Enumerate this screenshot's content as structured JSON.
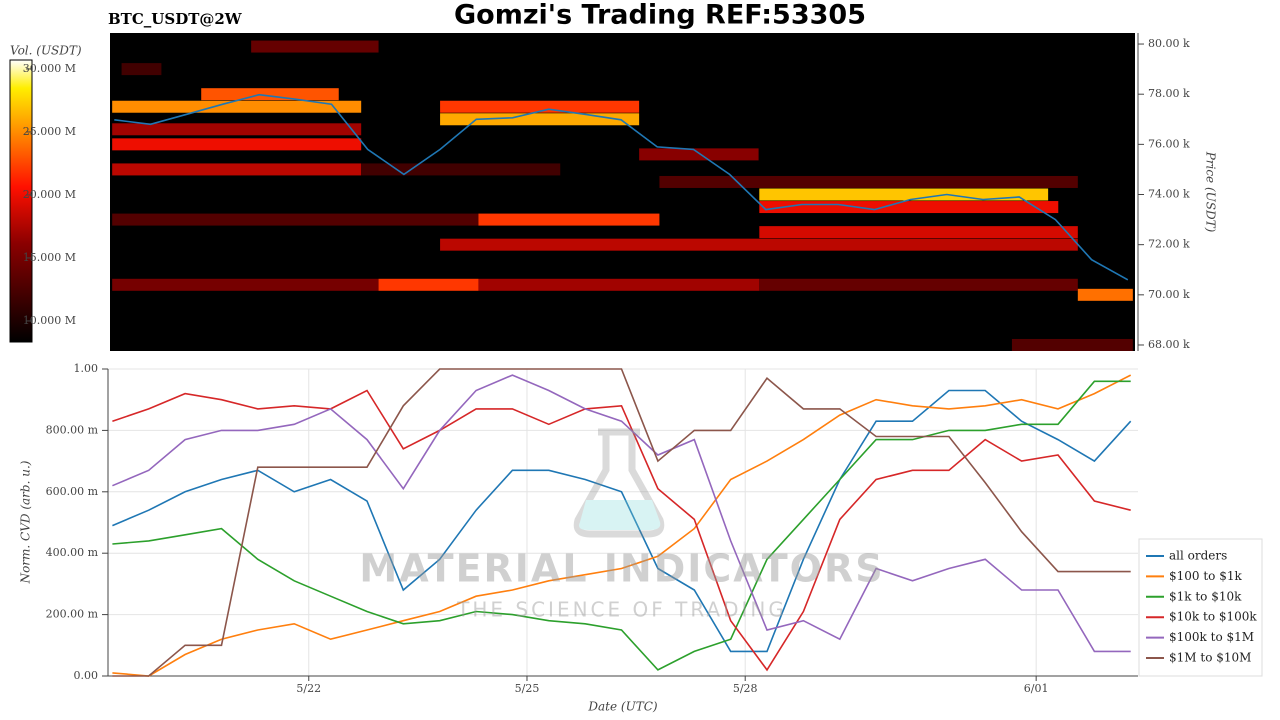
{
  "chart_data": [
    {
      "type": "heatmap",
      "title": "Gomzi's Trading REF:53305",
      "subtitle": "BTC_USDT@2W",
      "ylabel": "Price (USDT)",
      "xlim": [
        19.24,
        33.4
      ],
      "ylim": [
        67760,
        80440
      ],
      "yticks": [
        {
          "value": 68000,
          "label": "68.00 k"
        },
        {
          "value": 70000,
          "label": "70.00 k"
        },
        {
          "value": 72000,
          "label": "72.00 k"
        },
        {
          "value": 74000,
          "label": "74.00 k"
        },
        {
          "value": 76000,
          "label": "76.00 k"
        },
        {
          "value": 78000,
          "label": "78.00 k"
        },
        {
          "value": 80000,
          "label": "80.00 k"
        }
      ],
      "colorbar": {
        "label": "Vol. (USDT)",
        "lim": [
          8330000,
          30710000
        ],
        "ticks": [
          {
            "value": 10000000,
            "label": "10.000 M"
          },
          {
            "value": 15000000,
            "label": "15.000 M"
          },
          {
            "value": 20000000,
            "label": "20.000 M"
          },
          {
            "value": 25000000,
            "label": "25.000 M"
          },
          {
            "value": 30000000,
            "label": "30.000 M"
          }
        ]
      },
      "segments": [
        {
          "x0": 21.19,
          "x1": 22.95,
          "price": 79900,
          "volume": 14000000
        },
        {
          "x0": 19.4,
          "x1": 19.95,
          "price": 79000,
          "volume": 12000000
        },
        {
          "x0": 20.5,
          "x1": 22.4,
          "price": 78000,
          "volume": 23000000
        },
        {
          "x0": 19.27,
          "x1": 22.71,
          "price": 77500,
          "volume": 25000000
        },
        {
          "x0": 23.8,
          "x1": 26.55,
          "price": 77500,
          "volume": 22000000
        },
        {
          "x0": 23.8,
          "x1": 26.55,
          "price": 77000,
          "volume": 26000000
        },
        {
          "x0": 19.27,
          "x1": 22.71,
          "price": 76600,
          "volume": 17000000
        },
        {
          "x0": 19.27,
          "x1": 22.71,
          "price": 76000,
          "volume": 20000000
        },
        {
          "x0": 26.55,
          "x1": 28.2,
          "price": 75600,
          "volume": 16000000
        },
        {
          "x0": 19.27,
          "x1": 22.71,
          "price": 75000,
          "volume": 18000000
        },
        {
          "x0": 22.71,
          "x1": 25.46,
          "price": 75000,
          "volume": 12000000
        },
        {
          "x0": 26.83,
          "x1": 32.61,
          "price": 74500,
          "volume": 13000000
        },
        {
          "x0": 28.21,
          "x1": 32.2,
          "price": 74000,
          "volume": 27000000
        },
        {
          "x0": 28.21,
          "x1": 32.34,
          "price": 73500,
          "volume": 20000000
        },
        {
          "x0": 19.27,
          "x1": 24.33,
          "price": 73000,
          "volume": 13000000
        },
        {
          "x0": 24.33,
          "x1": 26.83,
          "price": 73000,
          "volume": 22000000
        },
        {
          "x0": 28.21,
          "x1": 32.61,
          "price": 72500,
          "volume": 19000000
        },
        {
          "x0": 23.8,
          "x1": 32.61,
          "price": 72000,
          "volume": 18000000
        },
        {
          "x0": 19.27,
          "x1": 22.95,
          "price": 70400,
          "volume": 15000000
        },
        {
          "x0": 22.95,
          "x1": 24.33,
          "price": 70400,
          "volume": 22000000
        },
        {
          "x0": 24.33,
          "x1": 28.21,
          "price": 70400,
          "volume": 17000000
        },
        {
          "x0": 28.21,
          "x1": 32.61,
          "price": 70400,
          "volume": 14000000
        },
        {
          "x0": 32.61,
          "x1": 33.37,
          "price": 70000,
          "volume": 24000000
        },
        {
          "x0": 31.7,
          "x1": 33.37,
          "price": 68000,
          "volume": 13000000
        }
      ],
      "price": {
        "color": "#1f77b4",
        "x": [
          19.3,
          19.8,
          20.3,
          20.8,
          21.3,
          21.8,
          22.3,
          22.8,
          23.3,
          23.8,
          24.3,
          24.8,
          25.3,
          25.8,
          26.3,
          26.8,
          27.3,
          27.8,
          28.3,
          28.8,
          29.3,
          29.8,
          30.3,
          30.8,
          31.3,
          31.8,
          32.3,
          32.8,
          33.3
        ],
        "values": [
          76980,
          76800,
          77200,
          77600,
          77980,
          77800,
          77600,
          75800,
          74800,
          75800,
          77000,
          77060,
          77400,
          77200,
          76980,
          75900,
          75800,
          74800,
          73400,
          73600,
          73600,
          73400,
          73800,
          74000,
          73800,
          73900,
          73000,
          71400,
          70600
        ]
      }
    },
    {
      "type": "line",
      "xlabel": "Date (UTC)",
      "ylabel": "Norm. CVD (arb. u.)",
      "xlim": [
        19.24,
        33.4
      ],
      "ylim": [
        0,
        1
      ],
      "grid": true,
      "legend": "right",
      "xticks": [
        {
          "value": 22,
          "label": "5/22"
        },
        {
          "value": 25,
          "label": "5/25"
        },
        {
          "value": 28,
          "label": "5/28"
        },
        {
          "value": 32,
          "label": "6/01"
        }
      ],
      "yticks": [
        {
          "value": 0,
          "label": "0.00"
        },
        {
          "value": 0.2,
          "label": "200.00 m"
        },
        {
          "value": 0.4,
          "label": "400.00 m"
        },
        {
          "value": 0.6,
          "label": "600.00 m"
        },
        {
          "value": 0.8,
          "label": "800.00 m"
        },
        {
          "value": 1,
          "label": "1.00"
        }
      ],
      "watermark": [
        "MATERIAL INDICATORS",
        "THE SCIENCE OF TRADING"
      ],
      "x": [
        19.3,
        19.8,
        20.3,
        20.8,
        21.3,
        21.8,
        22.3,
        22.8,
        23.3,
        23.8,
        24.3,
        24.8,
        25.3,
        25.8,
        26.3,
        26.8,
        27.3,
        27.8,
        28.3,
        28.8,
        29.3,
        29.8,
        30.3,
        30.8,
        31.3,
        31.8,
        32.3,
        32.8,
        33.3
      ],
      "series": [
        {
          "name": "all orders",
          "color": "#1f77b4",
          "values": [
            0.49,
            0.54,
            0.6,
            0.64,
            0.67,
            0.6,
            0.64,
            0.57,
            0.28,
            0.38,
            0.54,
            0.67,
            0.67,
            0.64,
            0.6,
            0.35,
            0.28,
            0.08,
            0.08,
            0.38,
            0.64,
            0.83,
            0.83,
            0.93,
            0.93,
            0.83,
            0.77,
            0.7,
            0.83
          ]
        },
        {
          "name": "$100 to $1k",
          "color": "#ff7f0e",
          "values": [
            0.01,
            0,
            0.07,
            0.12,
            0.15,
            0.17,
            0.12,
            0.15,
            0.18,
            0.21,
            0.26,
            0.28,
            0.31,
            0.33,
            0.35,
            0.39,
            0.48,
            0.64,
            0.7,
            0.77,
            0.85,
            0.9,
            0.88,
            0.87,
            0.88,
            0.9,
            0.87,
            0.92,
            0.98
          ]
        },
        {
          "name": "$1k to $10k",
          "color": "#2ca02c",
          "values": [
            0.43,
            0.44,
            0.46,
            0.48,
            0.38,
            0.31,
            0.26,
            0.21,
            0.17,
            0.18,
            0.21,
            0.2,
            0.18,
            0.17,
            0.15,
            0.02,
            0.08,
            0.12,
            0.38,
            0.51,
            0.64,
            0.77,
            0.77,
            0.8,
            0.8,
            0.82,
            0.82,
            0.96,
            0.96
          ]
        },
        {
          "name": "$10k to $100k",
          "color": "#d62728",
          "values": [
            0.83,
            0.87,
            0.92,
            0.9,
            0.87,
            0.88,
            0.87,
            0.93,
            0.74,
            0.8,
            0.87,
            0.87,
            0.82,
            0.87,
            0.88,
            0.61,
            0.51,
            0.18,
            0.02,
            0.21,
            0.51,
            0.64,
            0.67,
            0.67,
            0.77,
            0.7,
            0.72,
            0.57,
            0.54
          ]
        },
        {
          "name": "$100k to $1M",
          "color": "#9467bd",
          "values": [
            0.62,
            0.67,
            0.77,
            0.8,
            0.8,
            0.82,
            0.87,
            0.77,
            0.61,
            0.8,
            0.93,
            0.98,
            0.93,
            0.87,
            0.83,
            0.72,
            0.77,
            0.44,
            0.15,
            0.18,
            0.12,
            0.35,
            0.31,
            0.35,
            0.38,
            0.28,
            0.28,
            0.08,
            0.08
          ]
        },
        {
          "name": "$1M to $10M",
          "color": "#8c564b",
          "values": [
            0,
            0,
            0.1,
            0.1,
            0.68,
            0.68,
            0.68,
            0.68,
            0.88,
            1,
            1,
            1,
            1,
            1,
            1,
            0.7,
            0.8,
            0.8,
            0.97,
            0.87,
            0.87,
            0.78,
            0.78,
            0.78,
            0.63,
            0.47,
            0.34,
            0.34,
            0.34
          ]
        }
      ]
    }
  ]
}
